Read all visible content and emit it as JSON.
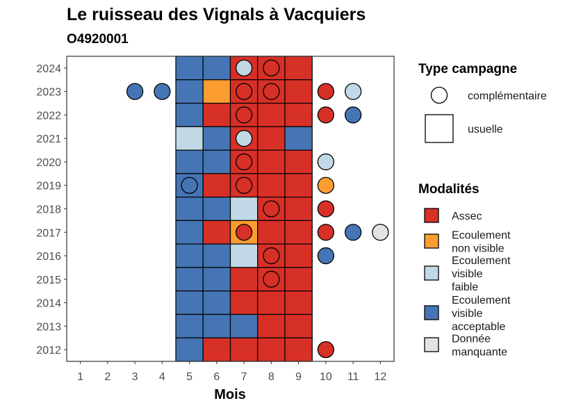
{
  "chart_data": {
    "type": "heatmap",
    "title": "Le ruisseau des Vignals à Vacquiers",
    "subtitle": "O4920001",
    "xlabel": "Mois",
    "ylabel": "",
    "x_ticks": [
      1,
      2,
      3,
      4,
      5,
      6,
      7,
      8,
      9,
      10,
      11,
      12
    ],
    "y_ticks": [
      2012,
      2013,
      2014,
      2015,
      2016,
      2017,
      2018,
      2019,
      2020,
      2021,
      2022,
      2023,
      2024
    ],
    "xlim": [
      0.5,
      12.5
    ],
    "ylim": [
      2011.5,
      2024.5
    ],
    "modalities": [
      {
        "key": "assec",
        "label": "Assec",
        "color": "#d73027"
      },
      {
        "key": "non_visible",
        "label": "Ecoulement non visible",
        "color": "#fc9d31"
      },
      {
        "key": "faible",
        "label": "Ecoulement visible faible",
        "color": "#c1d9e6"
      },
      {
        "key": "acceptable",
        "label": "Ecoulement visible acceptable",
        "color": "#4575b4"
      },
      {
        "key": "manquante",
        "label": "Donnée manquante",
        "color": "#e3e3e3"
      }
    ],
    "legend": {
      "type_title": "Type campagne",
      "types": [
        {
          "key": "complementaire",
          "label": "complémentaire",
          "shape": "circle"
        },
        {
          "key": "usuelle",
          "label": "usuelle",
          "shape": "square"
        }
      ],
      "modalities_title": "Modalités",
      "position": "right"
    },
    "usuelle": [
      {
        "year": 2024,
        "month": 5,
        "value": "acceptable"
      },
      {
        "year": 2024,
        "month": 6,
        "value": "acceptable"
      },
      {
        "year": 2024,
        "month": 7,
        "value": "assec"
      },
      {
        "year": 2024,
        "month": 8,
        "value": "assec"
      },
      {
        "year": 2024,
        "month": 9,
        "value": "assec"
      },
      {
        "year": 2023,
        "month": 5,
        "value": "acceptable"
      },
      {
        "year": 2023,
        "month": 6,
        "value": "non_visible"
      },
      {
        "year": 2023,
        "month": 7,
        "value": "assec"
      },
      {
        "year": 2023,
        "month": 8,
        "value": "assec"
      },
      {
        "year": 2023,
        "month": 9,
        "value": "assec"
      },
      {
        "year": 2022,
        "month": 5,
        "value": "acceptable"
      },
      {
        "year": 2022,
        "month": 6,
        "value": "assec"
      },
      {
        "year": 2022,
        "month": 7,
        "value": "assec"
      },
      {
        "year": 2022,
        "month": 8,
        "value": "assec"
      },
      {
        "year": 2022,
        "month": 9,
        "value": "assec"
      },
      {
        "year": 2021,
        "month": 5,
        "value": "faible"
      },
      {
        "year": 2021,
        "month": 6,
        "value": "acceptable"
      },
      {
        "year": 2021,
        "month": 7,
        "value": "assec"
      },
      {
        "year": 2021,
        "month": 8,
        "value": "assec"
      },
      {
        "year": 2021,
        "month": 9,
        "value": "acceptable"
      },
      {
        "year": 2020,
        "month": 5,
        "value": "acceptable"
      },
      {
        "year": 2020,
        "month": 6,
        "value": "acceptable"
      },
      {
        "year": 2020,
        "month": 7,
        "value": "assec"
      },
      {
        "year": 2020,
        "month": 8,
        "value": "assec"
      },
      {
        "year": 2020,
        "month": 9,
        "value": "assec"
      },
      {
        "year": 2019,
        "month": 5,
        "value": "acceptable"
      },
      {
        "year": 2019,
        "month": 6,
        "value": "assec"
      },
      {
        "year": 2019,
        "month": 7,
        "value": "assec"
      },
      {
        "year": 2019,
        "month": 8,
        "value": "assec"
      },
      {
        "year": 2019,
        "month": 9,
        "value": "assec"
      },
      {
        "year": 2018,
        "month": 5,
        "value": "acceptable"
      },
      {
        "year": 2018,
        "month": 6,
        "value": "acceptable"
      },
      {
        "year": 2018,
        "month": 7,
        "value": "faible"
      },
      {
        "year": 2018,
        "month": 8,
        "value": "assec"
      },
      {
        "year": 2018,
        "month": 9,
        "value": "assec"
      },
      {
        "year": 2017,
        "month": 5,
        "value": "acceptable"
      },
      {
        "year": 2017,
        "month": 6,
        "value": "assec"
      },
      {
        "year": 2017,
        "month": 7,
        "value": "non_visible"
      },
      {
        "year": 2017,
        "month": 8,
        "value": "assec"
      },
      {
        "year": 2017,
        "month": 9,
        "value": "assec"
      },
      {
        "year": 2016,
        "month": 5,
        "value": "acceptable"
      },
      {
        "year": 2016,
        "month": 6,
        "value": "acceptable"
      },
      {
        "year": 2016,
        "month": 7,
        "value": "faible"
      },
      {
        "year": 2016,
        "month": 8,
        "value": "assec"
      },
      {
        "year": 2016,
        "month": 9,
        "value": "assec"
      },
      {
        "year": 2015,
        "month": 5,
        "value": "acceptable"
      },
      {
        "year": 2015,
        "month": 6,
        "value": "acceptable"
      },
      {
        "year": 2015,
        "month": 7,
        "value": "assec"
      },
      {
        "year": 2015,
        "month": 8,
        "value": "assec"
      },
      {
        "year": 2015,
        "month": 9,
        "value": "assec"
      },
      {
        "year": 2014,
        "month": 5,
        "value": "acceptable"
      },
      {
        "year": 2014,
        "month": 6,
        "value": "acceptable"
      },
      {
        "year": 2014,
        "month": 7,
        "value": "assec"
      },
      {
        "year": 2014,
        "month": 8,
        "value": "assec"
      },
      {
        "year": 2014,
        "month": 9,
        "value": "assec"
      },
      {
        "year": 2013,
        "month": 5,
        "value": "acceptable"
      },
      {
        "year": 2013,
        "month": 6,
        "value": "acceptable"
      },
      {
        "year": 2013,
        "month": 7,
        "value": "acceptable"
      },
      {
        "year": 2013,
        "month": 8,
        "value": "assec"
      },
      {
        "year": 2013,
        "month": 9,
        "value": "assec"
      },
      {
        "year": 2012,
        "month": 5,
        "value": "acceptable"
      },
      {
        "year": 2012,
        "month": 6,
        "value": "assec"
      },
      {
        "year": 2012,
        "month": 7,
        "value": "assec"
      },
      {
        "year": 2012,
        "month": 8,
        "value": "assec"
      },
      {
        "year": 2012,
        "month": 9,
        "value": "assec"
      }
    ],
    "complementaire": [
      {
        "year": 2024,
        "month": 7,
        "value": "faible"
      },
      {
        "year": 2024,
        "month": 8,
        "value": "assec"
      },
      {
        "year": 2023,
        "month": 3,
        "value": "acceptable"
      },
      {
        "year": 2023,
        "month": 4,
        "value": "acceptable"
      },
      {
        "year": 2023,
        "month": 7,
        "value": "assec"
      },
      {
        "year": 2023,
        "month": 8,
        "value": "assec"
      },
      {
        "year": 2023,
        "month": 10,
        "value": "assec"
      },
      {
        "year": 2023,
        "month": 11,
        "value": "faible"
      },
      {
        "year": 2022,
        "month": 7,
        "value": "assec"
      },
      {
        "year": 2022,
        "month": 10,
        "value": "assec"
      },
      {
        "year": 2022,
        "month": 11,
        "value": "acceptable"
      },
      {
        "year": 2021,
        "month": 7,
        "value": "faible"
      },
      {
        "year": 2020,
        "month": 7,
        "value": "assec"
      },
      {
        "year": 2020,
        "month": 10,
        "value": "faible"
      },
      {
        "year": 2019,
        "month": 5,
        "value": "acceptable"
      },
      {
        "year": 2019,
        "month": 7,
        "value": "assec"
      },
      {
        "year": 2019,
        "month": 10,
        "value": "non_visible"
      },
      {
        "year": 2018,
        "month": 8,
        "value": "assec"
      },
      {
        "year": 2018,
        "month": 10,
        "value": "assec"
      },
      {
        "year": 2017,
        "month": 7,
        "value": "assec"
      },
      {
        "year": 2017,
        "month": 10,
        "value": "assec"
      },
      {
        "year": 2017,
        "month": 11,
        "value": "acceptable"
      },
      {
        "year": 2017,
        "month": 12,
        "value": "manquante"
      },
      {
        "year": 2016,
        "month": 8,
        "value": "assec"
      },
      {
        "year": 2016,
        "month": 10,
        "value": "acceptable"
      },
      {
        "year": 2015,
        "month": 8,
        "value": "assec"
      },
      {
        "year": 2012,
        "month": 10,
        "value": "assec"
      }
    ]
  }
}
